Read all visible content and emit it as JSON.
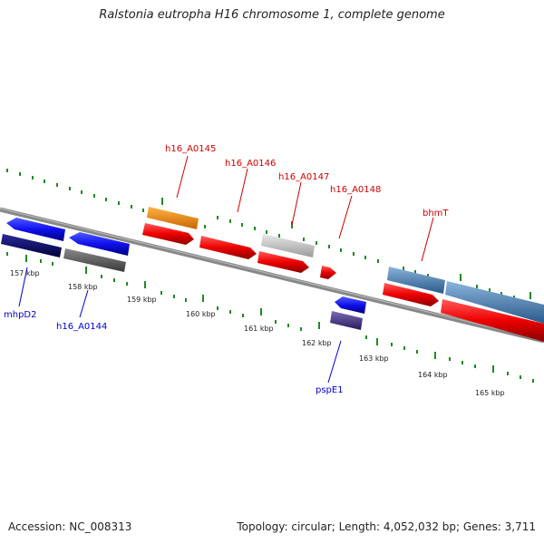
{
  "title": "Ralstonia eutropha H16 chromosome 1, complete genome",
  "footer": {
    "accession": "Accession: NC_008313",
    "summary": "Topology: circular; Length: 4,052,032 bp; Genes: 3,711"
  },
  "colors": {
    "backbone": "#888888",
    "tick": "#228822",
    "forward_label": "#cc0000",
    "reverse_label": "#0000cc"
  },
  "scale_labels": [
    "157 kbp",
    "158 kbp",
    "159 kbp",
    "160 kbp",
    "161 kbp",
    "162 kbp",
    "163 kbp",
    "164 kbp",
    "165 kbp"
  ],
  "genes": [
    {
      "name": "mhpD2",
      "strand": "reverse",
      "color": "#0000ee",
      "labeled": true
    },
    {
      "name": "h16_A0144",
      "strand": "reverse",
      "color": "#0000ee",
      "labeled": true
    },
    {
      "name": "h16_A0145",
      "strand": "forward",
      "color": "#ff8800",
      "labeled": true
    },
    {
      "name": "h16_A0146",
      "strand": "forward",
      "color": "#ee0000",
      "labeled": true
    },
    {
      "name": "h16_A0147",
      "strand": "forward",
      "color": "#bbbbbb",
      "labeled": true
    },
    {
      "name": "h16_A0148",
      "strand": "forward",
      "color": "#ee0000",
      "labeled": true
    },
    {
      "name": "pspE1",
      "strand": "reverse",
      "color": "#0000ee",
      "labeled": true
    },
    {
      "name": "bhmT",
      "strand": "forward",
      "color": "#4a86b8",
      "labeled": true
    }
  ]
}
